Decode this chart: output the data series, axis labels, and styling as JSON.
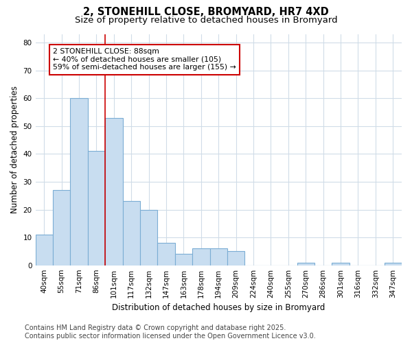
{
  "title_line1": "2, STONEHILL CLOSE, BROMYARD, HR7 4XD",
  "title_line2": "Size of property relative to detached houses in Bromyard",
  "xlabel": "Distribution of detached houses by size in Bromyard",
  "ylabel": "Number of detached properties",
  "categories": [
    "40sqm",
    "55sqm",
    "71sqm",
    "86sqm",
    "101sqm",
    "117sqm",
    "132sqm",
    "147sqm",
    "163sqm",
    "178sqm",
    "194sqm",
    "209sqm",
    "224sqm",
    "240sqm",
    "255sqm",
    "270sqm",
    "286sqm",
    "301sqm",
    "316sqm",
    "332sqm",
    "347sqm"
  ],
  "values": [
    11,
    27,
    60,
    41,
    53,
    23,
    20,
    8,
    4,
    6,
    6,
    5,
    0,
    0,
    0,
    1,
    0,
    1,
    0,
    0,
    1
  ],
  "bar_color": "#c8ddf0",
  "bar_edgecolor": "#7badd4",
  "ylim": [
    0,
    83
  ],
  "yticks": [
    0,
    10,
    20,
    30,
    40,
    50,
    60,
    70,
    80
  ],
  "property_label": "2 STONEHILL CLOSE: 88sqm",
  "annotation_line1": "← 40% of detached houses are smaller (105)",
  "annotation_line2": "59% of semi-detached houses are larger (155) →",
  "annotation_box_color": "#ffffff",
  "annotation_box_edgecolor": "#cc0000",
  "red_line_x": 3.5,
  "footer_line1": "Contains HM Land Registry data © Crown copyright and database right 2025.",
  "footer_line2": "Contains public sector information licensed under the Open Government Licence v3.0.",
  "bg_color": "#ffffff",
  "plot_bg_color": "#ffffff",
  "grid_color": "#d0dce8",
  "title_fontsize": 10.5,
  "subtitle_fontsize": 9.5,
  "axis_label_fontsize": 8.5,
  "tick_fontsize": 7.5,
  "annotation_fontsize": 7.8,
  "footer_fontsize": 7.0
}
